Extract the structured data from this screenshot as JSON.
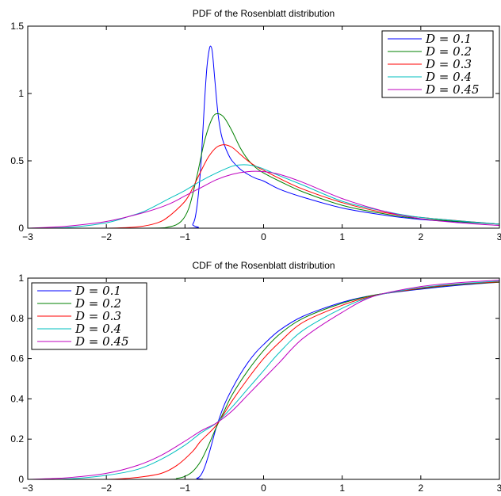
{
  "chart_data": [
    {
      "type": "line",
      "title": "PDF of the Rosenblatt distribution",
      "xlabel": "",
      "ylabel": "",
      "xlim": [
        -3,
        3
      ],
      "ylim": [
        0,
        1.5
      ],
      "xticks": [
        -3,
        -2,
        -1,
        0,
        1,
        2,
        3
      ],
      "xtick_labels": [
        "−3",
        "−2",
        "−1",
        "0",
        "1",
        "2",
        "3"
      ],
      "yticks": [
        0,
        0.5,
        1,
        1.5
      ],
      "ytick_labels": [
        "0",
        "0.5",
        "1",
        "1.5"
      ],
      "grid": false,
      "legend_position": "top-right",
      "series": [
        {
          "name": "D = 0.1",
          "color": "#0000ff",
          "x": [
            -3,
            -1.0,
            -0.9,
            -0.85,
            -0.8,
            -0.75,
            -0.72,
            -0.69,
            -0.67,
            -0.65,
            -0.62,
            -0.58,
            -0.54,
            -0.5,
            -0.45,
            -0.4,
            -0.3,
            -0.2,
            -0.1,
            0,
            0.2,
            0.5,
            1,
            1.5,
            2,
            3
          ],
          "y": [
            0,
            0,
            0.03,
            0.15,
            0.45,
            0.95,
            1.2,
            1.33,
            1.35,
            1.3,
            1.1,
            0.85,
            0.7,
            0.62,
            0.55,
            0.5,
            0.44,
            0.4,
            0.37,
            0.35,
            0.29,
            0.23,
            0.15,
            0.1,
            0.065,
            0.03
          ]
        },
        {
          "name": "D = 0.2",
          "color": "#008000",
          "x": [
            -3,
            -1.5,
            -1.2,
            -1.05,
            -0.95,
            -0.85,
            -0.75,
            -0.65,
            -0.58,
            -0.5,
            -0.4,
            -0.3,
            -0.2,
            -0.1,
            0,
            0.2,
            0.5,
            1,
            1.5,
            2,
            3
          ],
          "y": [
            0,
            0,
            0.01,
            0.05,
            0.15,
            0.38,
            0.65,
            0.82,
            0.85,
            0.82,
            0.72,
            0.6,
            0.51,
            0.45,
            0.41,
            0.35,
            0.27,
            0.17,
            0.11,
            0.07,
            0.03
          ]
        },
        {
          "name": "D = 0.3",
          "color": "#ff0000",
          "x": [
            -3,
            -2,
            -1.6,
            -1.35,
            -1.2,
            -1.0,
            -0.9,
            -0.8,
            -0.7,
            -0.6,
            -0.5,
            -0.4,
            -0.3,
            -0.2,
            -0.1,
            0,
            0.2,
            0.5,
            1,
            1.5,
            2,
            3
          ],
          "y": [
            0,
            0,
            0.01,
            0.04,
            0.09,
            0.2,
            0.3,
            0.42,
            0.53,
            0.6,
            0.62,
            0.6,
            0.55,
            0.5,
            0.46,
            0.43,
            0.37,
            0.29,
            0.19,
            0.12,
            0.08,
            0.03
          ]
        },
        {
          "name": "D = 0.4",
          "color": "#00bfbf",
          "x": [
            -3,
            -2.5,
            -2,
            -1.7,
            -1.5,
            -1.2,
            -1.0,
            -0.8,
            -0.6,
            -0.4,
            -0.3,
            -0.2,
            -0.1,
            0,
            0.2,
            0.5,
            1,
            1.5,
            2,
            3
          ],
          "y": [
            0,
            0.005,
            0.04,
            0.09,
            0.13,
            0.22,
            0.28,
            0.35,
            0.41,
            0.46,
            0.47,
            0.47,
            0.46,
            0.44,
            0.39,
            0.32,
            0.2,
            0.13,
            0.08,
            0.03
          ]
        },
        {
          "name": "D = 0.45",
          "color": "#bf00bf",
          "x": [
            -3,
            -2.5,
            -2,
            -1.5,
            -1.2,
            -1.0,
            -0.8,
            -0.6,
            -0.4,
            -0.2,
            0,
            0.2,
            0.5,
            1,
            1.5,
            2,
            2.5,
            3
          ],
          "y": [
            0,
            0.015,
            0.05,
            0.12,
            0.18,
            0.24,
            0.3,
            0.36,
            0.4,
            0.42,
            0.42,
            0.4,
            0.34,
            0.22,
            0.13,
            0.07,
            0.04,
            0.02
          ]
        }
      ]
    },
    {
      "type": "line",
      "title": "CDF of the Rosenblatt distribution",
      "xlabel": "",
      "ylabel": "",
      "xlim": [
        -3,
        3
      ],
      "ylim": [
        0,
        1
      ],
      "xticks": [
        -3,
        -2,
        -1,
        0,
        1,
        2,
        3
      ],
      "xtick_labels": [
        "−3",
        "−2",
        "−1",
        "0",
        "1",
        "2",
        "3"
      ],
      "yticks": [
        0,
        0.2,
        0.4,
        0.6,
        0.8,
        1
      ],
      "ytick_labels": [
        "0",
        "0.2",
        "0.4",
        "0.6",
        "0.8",
        "1"
      ],
      "grid": false,
      "legend_position": "top-left",
      "series": [
        {
          "name": "D = 0.1",
          "color": "#0000ff",
          "x": [
            -3,
            -0.95,
            -0.85,
            -0.8,
            -0.75,
            -0.7,
            -0.65,
            -0.6,
            -0.5,
            -0.4,
            -0.3,
            -0.2,
            -0.1,
            0,
            0.2,
            0.5,
            1,
            1.4,
            2,
            2.5,
            3
          ],
          "y": [
            0,
            0,
            0.005,
            0.02,
            0.06,
            0.12,
            0.19,
            0.26,
            0.37,
            0.45,
            0.52,
            0.58,
            0.63,
            0.67,
            0.74,
            0.81,
            0.88,
            0.915,
            0.945,
            0.965,
            0.98
          ]
        },
        {
          "name": "D = 0.2",
          "color": "#008000",
          "x": [
            -3,
            -1.3,
            -1.1,
            -1.0,
            -0.9,
            -0.8,
            -0.7,
            -0.6,
            -0.5,
            -0.4,
            -0.2,
            0,
            0.2,
            0.5,
            1,
            1.4,
            2,
            2.5,
            3
          ],
          "y": [
            0,
            0,
            0.005,
            0.015,
            0.04,
            0.09,
            0.17,
            0.26,
            0.34,
            0.42,
            0.54,
            0.64,
            0.72,
            0.8,
            0.875,
            0.915,
            0.948,
            0.968,
            0.98
          ]
        },
        {
          "name": "D = 0.3",
          "color": "#ff0000",
          "x": [
            -3,
            -2,
            -1.6,
            -1.3,
            -1.1,
            -0.9,
            -0.8,
            -0.6,
            -0.4,
            -0.2,
            0,
            0.2,
            0.5,
            1,
            1.4,
            2,
            2.5,
            3
          ],
          "y": [
            0,
            0,
            0.01,
            0.03,
            0.07,
            0.14,
            0.19,
            0.27,
            0.39,
            0.5,
            0.6,
            0.68,
            0.78,
            0.865,
            0.912,
            0.95,
            0.97,
            0.982
          ]
        },
        {
          "name": "D = 0.4",
          "color": "#00bfbf",
          "x": [
            -3,
            -2.5,
            -2,
            -1.6,
            -1.3,
            -1.0,
            -0.8,
            -0.6,
            -0.4,
            -0.2,
            0,
            0.2,
            0.5,
            1,
            1.4,
            2,
            2.5,
            3
          ],
          "y": [
            0,
            0.002,
            0.02,
            0.05,
            0.1,
            0.17,
            0.23,
            0.28,
            0.36,
            0.45,
            0.54,
            0.63,
            0.74,
            0.85,
            0.91,
            0.953,
            0.972,
            0.985
          ]
        },
        {
          "name": "D = 0.45",
          "color": "#bf00bf",
          "x": [
            -3,
            -2.5,
            -2,
            -1.6,
            -1.3,
            -1.0,
            -0.8,
            -0.6,
            -0.4,
            -0.2,
            0,
            0.2,
            0.5,
            1,
            1.4,
            2,
            2.5,
            3
          ],
          "y": [
            0,
            0.008,
            0.03,
            0.07,
            0.12,
            0.19,
            0.24,
            0.28,
            0.34,
            0.42,
            0.5,
            0.58,
            0.7,
            0.83,
            0.91,
            0.958,
            0.978,
            0.99
          ]
        }
      ]
    }
  ]
}
